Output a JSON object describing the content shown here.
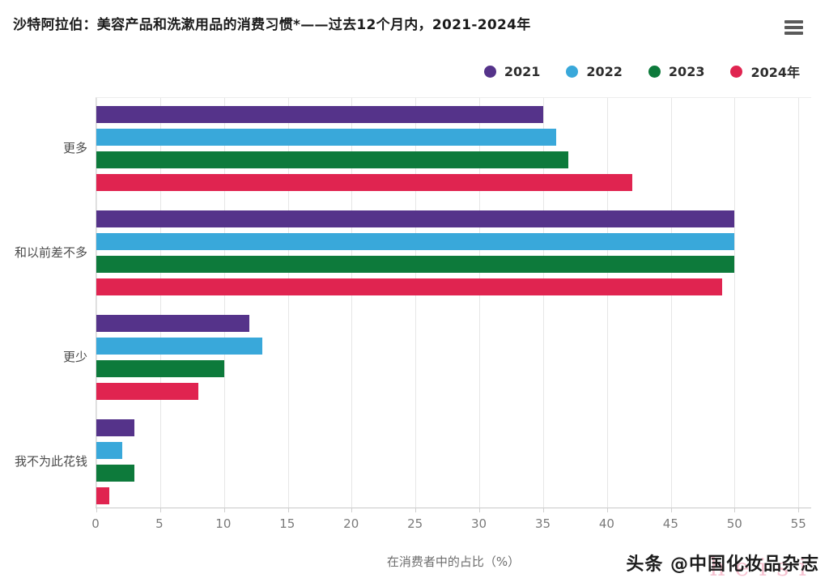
{
  "header": {
    "title": "沙特阿拉伯：美容产品和洗漱用品的消费习惯*——过去12个月内，2021-2024年"
  },
  "chart_data": {
    "type": "bar",
    "orientation": "horizontal",
    "title": "沙特阿拉伯：美容产品和洗漱用品的消费习惯*——过去12个月内，2021-2024年",
    "categories": [
      "更多",
      "和以前差不多",
      "更少",
      "我不为此花钱"
    ],
    "series": [
      {
        "name": "2021",
        "color": "#55338a",
        "values": [
          35,
          50,
          12,
          3
        ]
      },
      {
        "name": "2022",
        "color": "#39a8da",
        "values": [
          36,
          50,
          13,
          2
        ]
      },
      {
        "name": "2023",
        "color": "#0d7a3b",
        "values": [
          37,
          50,
          10,
          3
        ]
      },
      {
        "name": "2024年",
        "color": "#e02450",
        "values": [
          42,
          49,
          8,
          1
        ]
      }
    ],
    "xlabel": "在消费者中的占比（%）",
    "x_ticks": [
      0,
      5,
      10,
      15,
      20,
      25,
      30,
      35,
      40,
      45,
      50,
      55
    ],
    "xlim": [
      0,
      56
    ],
    "grid": true,
    "legend_position": "top-right",
    "colors": {
      "gridline": "#e6e6e6",
      "axis_text": "#7a7a7a",
      "category_text": "#4a4a4a"
    }
  },
  "watermark": {
    "source_text": "头条 @中国化妆品杂志",
    "faint_overlay": "heisi"
  }
}
